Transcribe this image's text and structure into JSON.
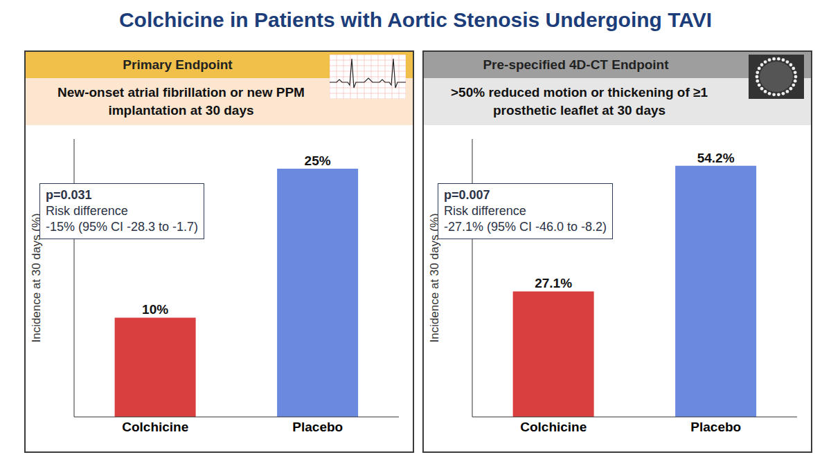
{
  "title": "Colchicine in Patients with Aortic Stenosis Undergoing TAVI",
  "chart_data": [
    {
      "type": "bar",
      "title": "Primary Endpoint",
      "subtitle": "New-onset atrial fibrillation or new PPM implantation at 30 days",
      "y_label": "Incidence at 30 days (%)",
      "categories": [
        "Colchicine",
        "Placebo"
      ],
      "values": [
        10,
        25
      ],
      "value_labels": [
        "10%",
        "25%"
      ],
      "data_labels": true,
      "colors": [
        "#d93f3f",
        "#6a8ae0"
      ],
      "ylim": [
        0,
        28
      ],
      "tick_labels": "x",
      "grid": false,
      "annotations": [
        "p=0.031",
        "Risk difference",
        "-15% (95% CI -28.3 to -1.7)"
      ]
    },
    {
      "type": "bar",
      "title": "Pre-specified 4D-CT Endpoint",
      "subtitle": ">50% reduced motion or thickening of ≥1 prosthetic leaflet at 30 days",
      "y_label": "Incidence at 30 days (%)",
      "categories": [
        "Colchicine",
        "Placebo"
      ],
      "values": [
        27.1,
        54.2
      ],
      "value_labels": [
        "27.1%",
        "54.2%"
      ],
      "data_labels": true,
      "colors": [
        "#d93f3f",
        "#6a8ae0"
      ],
      "ylim": [
        0,
        60
      ],
      "tick_labels": "x",
      "grid": false,
      "annotations": [
        "p=0.007",
        "Risk difference",
        "-27.1% (95% CI -46.0 to -8.2)"
      ]
    }
  ]
}
